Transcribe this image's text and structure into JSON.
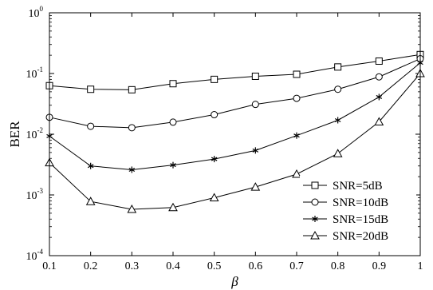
{
  "chart_data": {
    "type": "line",
    "title": "",
    "xlabel": "β",
    "ylabel": "BER",
    "yscale": "log",
    "xlim": [
      0.1,
      1
    ],
    "ylim": [
      0.0001,
      1
    ],
    "x": [
      0.1,
      0.2,
      0.3,
      0.4,
      0.5,
      0.6,
      0.7,
      0.8,
      0.9,
      1
    ],
    "x_tick_labels": [
      "0.1",
      "0.2",
      "0.3",
      "0.4",
      "0.5",
      "0.6",
      "0.7",
      "0.8",
      "0.9",
      "1"
    ],
    "y_ticks": [
      {
        "value": 1,
        "base": "10",
        "exp": "0"
      },
      {
        "value": 0.1,
        "base": "10",
        "exp": "-1"
      },
      {
        "value": 0.01,
        "base": "10",
        "exp": "-2"
      },
      {
        "value": 0.001,
        "base": "10",
        "exp": "-3"
      },
      {
        "value": 0.0001,
        "base": "10",
        "exp": "-4"
      }
    ],
    "grid": false,
    "legend_position": "bottom-right",
    "series": [
      {
        "name": "SNR=5dB",
        "marker": "square",
        "values": [
          0.063,
          0.055,
          0.054,
          0.068,
          0.08,
          0.09,
          0.097,
          0.128,
          0.16,
          0.205
        ]
      },
      {
        "name": "SNR=10dB",
        "marker": "circle",
        "values": [
          0.019,
          0.0135,
          0.0128,
          0.0158,
          0.021,
          0.031,
          0.039,
          0.055,
          0.088,
          0.175
        ]
      },
      {
        "name": "SNR=15dB",
        "marker": "star",
        "values": [
          0.0093,
          0.003,
          0.0026,
          0.0031,
          0.0039,
          0.0054,
          0.0095,
          0.017,
          0.041,
          0.15
        ]
      },
      {
        "name": "SNR=20dB",
        "marker": "triangle",
        "values": [
          0.0034,
          0.00078,
          0.00058,
          0.00062,
          0.0009,
          0.00135,
          0.0022,
          0.0048,
          0.016,
          0.1
        ]
      }
    ]
  }
}
